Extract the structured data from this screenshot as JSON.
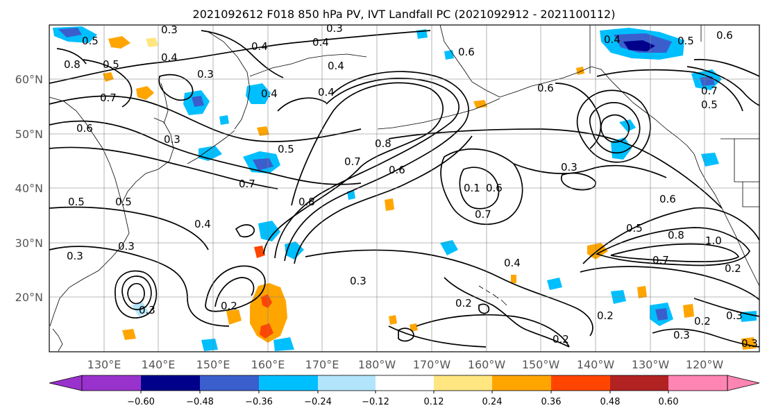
{
  "title": "2021092612 F018 850 hPa PV, IVT Landfall PC (2021092912 - 2021100112)",
  "lon_labels": [
    "130°E",
    "140°E",
    "150°E",
    "160°E",
    "170°E",
    "180°W",
    "170°W",
    "160°W",
    "150°W",
    "140°W",
    "130°W",
    "120°W"
  ],
  "lat_labels": [
    "60°N",
    "50°N",
    "40°N",
    "30°N",
    "20°N"
  ],
  "colorbar": {
    "ticks": [
      "−0.60",
      "−0.48",
      "−0.36",
      "−0.24",
      "−0.12",
      "0.12",
      "0.24",
      "0.36",
      "0.48",
      "0.60"
    ],
    "colors": [
      "#9932cc",
      "#00008b",
      "#3a5fcd",
      "#00bfff",
      "#b2e5fb",
      "#ffffff",
      "#ffe680",
      "#ffa500",
      "#ff4500",
      "#b22222",
      "#ff85b3"
    ]
  },
  "contour_labels": [
    "0.3",
    "0.4",
    "0.3",
    "0.4",
    "0.4",
    "0.5",
    "0.8",
    "0.5",
    "0.4",
    "0.7",
    "0.6",
    "0.3",
    "0.4",
    "0.4",
    "0.3",
    "0.5",
    "0.6",
    "0.7",
    "0.6",
    "0.6",
    "0.4",
    "0.5",
    "0.7",
    "0.5",
    "0.6",
    "0.3",
    "0.8",
    "0.5",
    "0.8",
    "0.3",
    "0.1",
    "0.6",
    "0.7",
    "0.4",
    "0.5",
    "0.3",
    "0.6",
    "0.7",
    "0.8",
    "1.0",
    "0.7",
    "0.2",
    "0.4",
    "0.3",
    "0.2",
    "0.3",
    "0.2",
    "0.5",
    "0.3",
    "0.3",
    "0.2",
    "0.2",
    "0.3",
    "0.2"
  ]
}
